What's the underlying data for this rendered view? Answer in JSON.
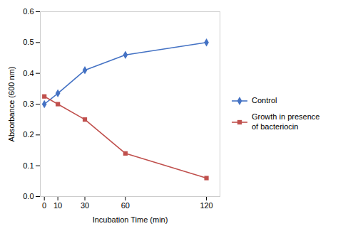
{
  "chart_data": {
    "type": "line",
    "x": [
      0,
      10,
      30,
      60,
      120
    ],
    "series": [
      {
        "name": "Control",
        "color": "#4472C4",
        "marker": "diamond",
        "values": [
          0.3,
          0.335,
          0.41,
          0.46,
          0.5
        ]
      },
      {
        "name": "Growth in presence\nof bacteriocin",
        "color": "#C0504D",
        "marker": "square",
        "values": [
          0.325,
          0.3,
          0.25,
          0.14,
          0.06
        ]
      }
    ],
    "xlabel": "Incubation Time (min)",
    "ylabel": "Absorbance (600 nm)",
    "xlim": [
      -3,
      130
    ],
    "ylim": [
      0,
      0.6
    ],
    "xticks": [
      0,
      10,
      30,
      60,
      120
    ],
    "yticks": [
      {
        "value": 0,
        "label": "0.0"
      },
      0.1,
      0.2,
      0.3,
      0.4,
      0.5,
      0.6
    ],
    "grid": false,
    "legend": "right"
  }
}
